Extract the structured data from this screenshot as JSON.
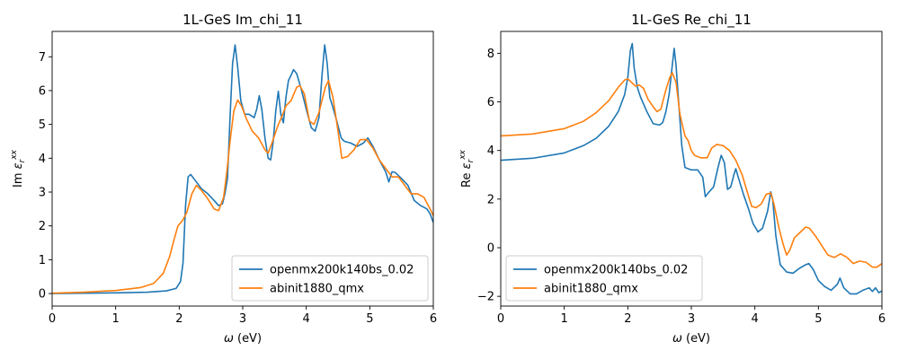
{
  "chart_data": [
    {
      "type": "line",
      "title": "1L-GeS Im_chi_11",
      "xlabel_symbol": "ω",
      "xlabel_unit": "(eV)",
      "ylabel_prefix": "Im",
      "ylabel_symbol": "ε",
      "ylabel_sub": "r",
      "ylabel_sup": "xx",
      "xlim": [
        0,
        6
      ],
      "ylim": [
        -0.37,
        7.75
      ],
      "xticks": [
        0,
        1,
        2,
        3,
        4,
        5,
        6
      ],
      "yticks": [
        0,
        1,
        2,
        3,
        4,
        5,
        6,
        7
      ],
      "grid": false,
      "legend_position": "lower-right",
      "series": [
        {
          "name": "openmx200k140bs_0.02",
          "color": "#1f77b4",
          "points": [
            [
              0,
              0
            ],
            [
              0.5,
              0.01
            ],
            [
              1.0,
              0.02
            ],
            [
              1.5,
              0.04
            ],
            [
              1.8,
              0.08
            ],
            [
              1.95,
              0.15
            ],
            [
              2.02,
              0.35
            ],
            [
              2.06,
              0.9
            ],
            [
              2.1,
              2.6
            ],
            [
              2.14,
              3.45
            ],
            [
              2.18,
              3.52
            ],
            [
              2.25,
              3.35
            ],
            [
              2.35,
              3.1
            ],
            [
              2.45,
              2.95
            ],
            [
              2.55,
              2.75
            ],
            [
              2.62,
              2.6
            ],
            [
              2.68,
              2.65
            ],
            [
              2.72,
              2.95
            ],
            [
              2.76,
              3.4
            ],
            [
              2.8,
              5.2
            ],
            [
              2.84,
              6.8
            ],
            [
              2.88,
              7.35
            ],
            [
              2.92,
              6.7
            ],
            [
              2.97,
              5.7
            ],
            [
              3.03,
              5.3
            ],
            [
              3.1,
              5.3
            ],
            [
              3.18,
              5.2
            ],
            [
              3.22,
              5.45
            ],
            [
              3.26,
              5.85
            ],
            [
              3.3,
              5.45
            ],
            [
              3.35,
              4.6
            ],
            [
              3.4,
              4.0
            ],
            [
              3.44,
              3.95
            ],
            [
              3.48,
              4.5
            ],
            [
              3.52,
              5.4
            ],
            [
              3.56,
              5.98
            ],
            [
              3.6,
              5.3
            ],
            [
              3.64,
              5.05
            ],
            [
              3.68,
              5.8
            ],
            [
              3.72,
              6.3
            ],
            [
              3.76,
              6.45
            ],
            [
              3.8,
              6.62
            ],
            [
              3.85,
              6.5
            ],
            [
              3.92,
              6.05
            ],
            [
              4.0,
              5.45
            ],
            [
              4.08,
              4.9
            ],
            [
              4.14,
              4.8
            ],
            [
              4.2,
              5.2
            ],
            [
              4.25,
              6.5
            ],
            [
              4.29,
              7.35
            ],
            [
              4.33,
              6.8
            ],
            [
              4.37,
              5.8
            ],
            [
              4.42,
              5.5
            ],
            [
              4.48,
              5.1
            ],
            [
              4.55,
              4.6
            ],
            [
              4.6,
              4.5
            ],
            [
              4.7,
              4.45
            ],
            [
              4.8,
              4.35
            ],
            [
              4.9,
              4.45
            ],
            [
              4.97,
              4.6
            ],
            [
              5.05,
              4.35
            ],
            [
              5.15,
              3.95
            ],
            [
              5.25,
              3.6
            ],
            [
              5.3,
              3.3
            ],
            [
              5.35,
              3.6
            ],
            [
              5.4,
              3.58
            ],
            [
              5.5,
              3.4
            ],
            [
              5.6,
              3.2
            ],
            [
              5.7,
              2.75
            ],
            [
              5.8,
              2.6
            ],
            [
              5.9,
              2.5
            ],
            [
              5.95,
              2.35
            ],
            [
              6.0,
              2.1
            ]
          ]
        },
        {
          "name": "abinit1880_qmx",
          "color": "#ff7f0e",
          "points": [
            [
              0,
              0.01
            ],
            [
              0.5,
              0.04
            ],
            [
              1.0,
              0.09
            ],
            [
              1.4,
              0.18
            ],
            [
              1.6,
              0.3
            ],
            [
              1.75,
              0.6
            ],
            [
              1.85,
              1.1
            ],
            [
              1.92,
              1.6
            ],
            [
              1.98,
              2.0
            ],
            [
              2.05,
              2.15
            ],
            [
              2.12,
              2.4
            ],
            [
              2.2,
              2.95
            ],
            [
              2.27,
              3.2
            ],
            [
              2.35,
              3.05
            ],
            [
              2.45,
              2.8
            ],
            [
              2.55,
              2.5
            ],
            [
              2.62,
              2.45
            ],
            [
              2.7,
              2.85
            ],
            [
              2.75,
              3.6
            ],
            [
              2.8,
              4.5
            ],
            [
              2.86,
              5.4
            ],
            [
              2.92,
              5.72
            ],
            [
              2.98,
              5.55
            ],
            [
              3.05,
              5.2
            ],
            [
              3.15,
              4.8
            ],
            [
              3.25,
              4.6
            ],
            [
              3.35,
              4.25
            ],
            [
              3.4,
              4.15
            ],
            [
              3.47,
              4.5
            ],
            [
              3.55,
              4.95
            ],
            [
              3.62,
              5.25
            ],
            [
              3.68,
              5.55
            ],
            [
              3.76,
              5.7
            ],
            [
              3.85,
              6.1
            ],
            [
              3.9,
              6.15
            ],
            [
              3.97,
              5.9
            ],
            [
              4.05,
              5.1
            ],
            [
              4.12,
              5.0
            ],
            [
              4.2,
              5.35
            ],
            [
              4.3,
              6.1
            ],
            [
              4.35,
              6.3
            ],
            [
              4.42,
              5.8
            ],
            [
              4.5,
              4.8
            ],
            [
              4.56,
              4.0
            ],
            [
              4.65,
              4.05
            ],
            [
              4.75,
              4.25
            ],
            [
              4.85,
              4.55
            ],
            [
              4.95,
              4.55
            ],
            [
              5.05,
              4.3
            ],
            [
              5.15,
              3.95
            ],
            [
              5.25,
              3.7
            ],
            [
              5.35,
              3.45
            ],
            [
              5.45,
              3.45
            ],
            [
              5.55,
              3.2
            ],
            [
              5.65,
              2.95
            ],
            [
              5.75,
              2.95
            ],
            [
              5.85,
              2.85
            ],
            [
              5.95,
              2.5
            ],
            [
              6.0,
              2.3
            ]
          ]
        }
      ]
    },
    {
      "type": "line",
      "title": "1L-GeS Re_chi_11",
      "xlabel_symbol": "ω",
      "xlabel_unit": "(eV)",
      "ylabel_prefix": "Re",
      "ylabel_symbol": "ε",
      "ylabel_sub": "r",
      "ylabel_sup": "xx",
      "xlim": [
        0,
        6
      ],
      "ylim": [
        -2.4,
        8.9
      ],
      "xticks": [
        0,
        1,
        2,
        3,
        4,
        5,
        6
      ],
      "yticks": [
        -2,
        0,
        2,
        4,
        6,
        8
      ],
      "grid": false,
      "legend_position": "lower-left",
      "series": [
        {
          "name": "openmx200k140bs_0.02",
          "color": "#1f77b4",
          "points": [
            [
              0,
              3.6
            ],
            [
              0.5,
              3.68
            ],
            [
              1.0,
              3.9
            ],
            [
              1.3,
              4.2
            ],
            [
              1.5,
              4.5
            ],
            [
              1.7,
              5.0
            ],
            [
              1.85,
              5.6
            ],
            [
              1.95,
              6.3
            ],
            [
              2.0,
              7.0
            ],
            [
              2.04,
              8.1
            ],
            [
              2.07,
              8.4
            ],
            [
              2.1,
              7.4
            ],
            [
              2.15,
              6.6
            ],
            [
              2.2,
              6.2
            ],
            [
              2.3,
              5.6
            ],
            [
              2.4,
              5.1
            ],
            [
              2.5,
              5.05
            ],
            [
              2.55,
              5.15
            ],
            [
              2.6,
              5.6
            ],
            [
              2.65,
              6.3
            ],
            [
              2.7,
              7.5
            ],
            [
              2.73,
              8.2
            ],
            [
              2.76,
              7.5
            ],
            [
              2.8,
              6.0
            ],
            [
              2.85,
              4.2
            ],
            [
              2.9,
              3.3
            ],
            [
              3.0,
              3.2
            ],
            [
              3.1,
              3.2
            ],
            [
              3.18,
              2.9
            ],
            [
              3.22,
              2.1
            ],
            [
              3.28,
              2.3
            ],
            [
              3.35,
              2.5
            ],
            [
              3.42,
              3.3
            ],
            [
              3.47,
              3.8
            ],
            [
              3.52,
              3.5
            ],
            [
              3.57,
              2.4
            ],
            [
              3.62,
              2.5
            ],
            [
              3.67,
              3.0
            ],
            [
              3.7,
              3.25
            ],
            [
              3.75,
              2.8
            ],
            [
              3.82,
              2.2
            ],
            [
              3.9,
              1.6
            ],
            [
              3.97,
              1.0
            ],
            [
              4.05,
              0.65
            ],
            [
              4.12,
              0.8
            ],
            [
              4.2,
              1.5
            ],
            [
              4.25,
              2.3
            ],
            [
              4.28,
              2.0
            ],
            [
              4.33,
              0.5
            ],
            [
              4.4,
              -0.7
            ],
            [
              4.5,
              -1.0
            ],
            [
              4.6,
              -1.05
            ],
            [
              4.7,
              -0.85
            ],
            [
              4.8,
              -0.7
            ],
            [
              4.85,
              -0.65
            ],
            [
              4.92,
              -0.9
            ],
            [
              5.0,
              -1.35
            ],
            [
              5.1,
              -1.6
            ],
            [
              5.2,
              -1.75
            ],
            [
              5.3,
              -1.5
            ],
            [
              5.34,
              -1.25
            ],
            [
              5.4,
              -1.65
            ],
            [
              5.5,
              -1.9
            ],
            [
              5.6,
              -1.9
            ],
            [
              5.7,
              -1.75
            ],
            [
              5.8,
              -1.65
            ],
            [
              5.85,
              -1.8
            ],
            [
              5.9,
              -1.65
            ],
            [
              5.95,
              -1.85
            ],
            [
              6.0,
              -1.78
            ]
          ]
        },
        {
          "name": "abinit1880_qmx",
          "color": "#ff7f0e",
          "points": [
            [
              0,
              4.6
            ],
            [
              0.5,
              4.68
            ],
            [
              1.0,
              4.9
            ],
            [
              1.3,
              5.2
            ],
            [
              1.5,
              5.55
            ],
            [
              1.7,
              6.05
            ],
            [
              1.85,
              6.6
            ],
            [
              1.95,
              6.9
            ],
            [
              2.0,
              6.95
            ],
            [
              2.06,
              6.8
            ],
            [
              2.12,
              6.65
            ],
            [
              2.18,
              6.7
            ],
            [
              2.25,
              6.55
            ],
            [
              2.32,
              6.1
            ],
            [
              2.4,
              5.8
            ],
            [
              2.46,
              5.6
            ],
            [
              2.52,
              5.7
            ],
            [
              2.6,
              6.5
            ],
            [
              2.66,
              7.0
            ],
            [
              2.7,
              7.2
            ],
            [
              2.76,
              6.8
            ],
            [
              2.82,
              5.5
            ],
            [
              2.9,
              4.6
            ],
            [
              2.95,
              4.4
            ],
            [
              3.0,
              4.0
            ],
            [
              3.05,
              3.8
            ],
            [
              3.15,
              3.7
            ],
            [
              3.25,
              3.7
            ],
            [
              3.32,
              4.1
            ],
            [
              3.4,
              4.25
            ],
            [
              3.5,
              4.2
            ],
            [
              3.6,
              4.0
            ],
            [
              3.7,
              3.6
            ],
            [
              3.8,
              3.0
            ],
            [
              3.88,
              2.3
            ],
            [
              3.95,
              1.7
            ],
            [
              4.02,
              1.65
            ],
            [
              4.1,
              1.8
            ],
            [
              4.18,
              2.2
            ],
            [
              4.25,
              2.25
            ],
            [
              4.3,
              1.8
            ],
            [
              4.38,
              0.8
            ],
            [
              4.45,
              0.1
            ],
            [
              4.5,
              -0.3
            ],
            [
              4.55,
              -0.1
            ],
            [
              4.62,
              0.4
            ],
            [
              4.7,
              0.6
            ],
            [
              4.8,
              0.85
            ],
            [
              4.86,
              0.8
            ],
            [
              4.95,
              0.5
            ],
            [
              5.05,
              0.1
            ],
            [
              5.15,
              -0.3
            ],
            [
              5.25,
              -0.4
            ],
            [
              5.35,
              -0.25
            ],
            [
              5.45,
              -0.4
            ],
            [
              5.55,
              -0.65
            ],
            [
              5.65,
              -0.55
            ],
            [
              5.75,
              -0.6
            ],
            [
              5.85,
              -0.8
            ],
            [
              5.92,
              -0.8
            ],
            [
              6.0,
              -0.65
            ]
          ]
        }
      ]
    }
  ]
}
